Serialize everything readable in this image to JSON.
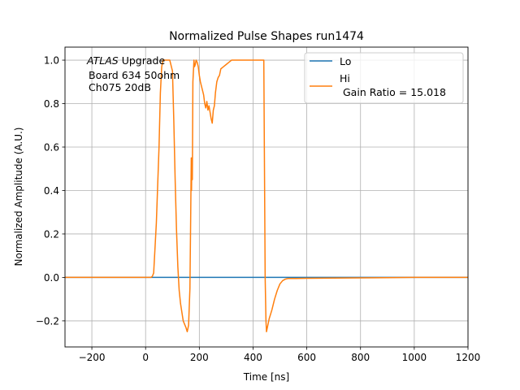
{
  "chart_data": {
    "type": "line",
    "title": "Normalized Pulse Shapes run1474",
    "xlabel": "Time [ns]",
    "ylabel": "Normalized Amplitude (A.U.)",
    "xlim": [
      -300,
      1200
    ],
    "ylim": [
      -0.32,
      1.06
    ],
    "grid": true,
    "xticks": [
      -200,
      0,
      200,
      400,
      600,
      800,
      1000,
      1200
    ],
    "xtick_labels": [
      "−200",
      "0",
      "200",
      "400",
      "600",
      "800",
      "1000",
      "1200"
    ],
    "yticks": [
      -0.2,
      0.0,
      0.2,
      0.4,
      0.6,
      0.8,
      1.0
    ],
    "ytick_labels": [
      "−0.2",
      "0.0",
      "0.2",
      "0.4",
      "0.6",
      "0.8",
      "1.0"
    ],
    "annotation": {
      "italic": "ATLAS",
      "line1": " Upgrade",
      "line2": "Board 634 50ohm",
      "line3": "Ch075 20dB"
    },
    "legend": {
      "placement": "upper-right",
      "entries": [
        {
          "label": "Lo"
        },
        {
          "label": "Hi",
          "sublabel": "Gain Ratio = 15.018"
        }
      ]
    },
    "series": [
      {
        "name": "Lo",
        "color": "#1f77b4",
        "x": [
          -300,
          0,
          30,
          100,
          200,
          300,
          400,
          450,
          500,
          550,
          600,
          700,
          800,
          1000,
          1200
        ],
        "y": [
          0.0,
          0.0,
          0.0,
          0.0,
          0.0,
          0.0,
          0.0,
          0.0,
          0.0,
          0.0,
          0.0,
          0.0,
          0.0,
          0.0,
          0.0
        ]
      },
      {
        "name": "Hi",
        "color": "#ff7f0e",
        "x": [
          -300,
          0,
          20,
          25,
          30,
          40,
          50,
          55,
          60,
          65,
          70,
          80,
          90,
          100,
          105,
          110,
          115,
          120,
          125,
          130,
          135,
          140,
          150,
          155,
          160,
          165,
          168,
          170,
          171,
          172,
          174,
          176,
          180,
          182,
          185,
          188,
          192,
          196,
          200,
          204,
          208,
          212,
          216,
          220,
          224,
          228,
          232,
          236,
          240,
          244,
          248,
          252,
          256,
          260,
          265,
          270,
          275,
          280,
          290,
          300,
          310,
          320,
          330,
          340,
          350,
          360,
          380,
          400,
          420,
          440,
          442,
          445,
          448,
          450,
          455,
          460,
          470,
          480,
          490,
          500,
          510,
          520,
          530,
          540,
          550,
          560,
          600,
          700,
          800,
          900,
          1000,
          1100,
          1200
        ],
        "y": [
          0.0,
          0.0,
          0.0,
          0.005,
          0.02,
          0.25,
          0.6,
          0.85,
          0.97,
          1.0,
          1.0,
          1.0,
          1.0,
          0.95,
          0.72,
          0.45,
          0.22,
          0.05,
          -0.06,
          -0.12,
          -0.16,
          -0.2,
          -0.23,
          -0.25,
          -0.22,
          -0.05,
          0.3,
          0.55,
          0.4,
          0.55,
          0.45,
          0.9,
          1.0,
          0.97,
          0.98,
          1.0,
          0.99,
          0.97,
          0.93,
          0.9,
          0.88,
          0.86,
          0.84,
          0.8,
          0.78,
          0.81,
          0.77,
          0.79,
          0.76,
          0.73,
          0.71,
          0.77,
          0.79,
          0.85,
          0.9,
          0.92,
          0.93,
          0.96,
          0.97,
          0.98,
          0.99,
          1.0,
          1.0,
          1.0,
          1.0,
          1.0,
          1.0,
          1.0,
          1.0,
          1.0,
          0.6,
          0.0,
          -0.2,
          -0.25,
          -0.22,
          -0.19,
          -0.15,
          -0.1,
          -0.06,
          -0.03,
          -0.015,
          -0.008,
          -0.005,
          -0.005,
          -0.005,
          -0.005,
          -0.004,
          -0.003,
          -0.002,
          -0.001,
          0.0,
          0.0,
          0.0
        ]
      }
    ]
  }
}
